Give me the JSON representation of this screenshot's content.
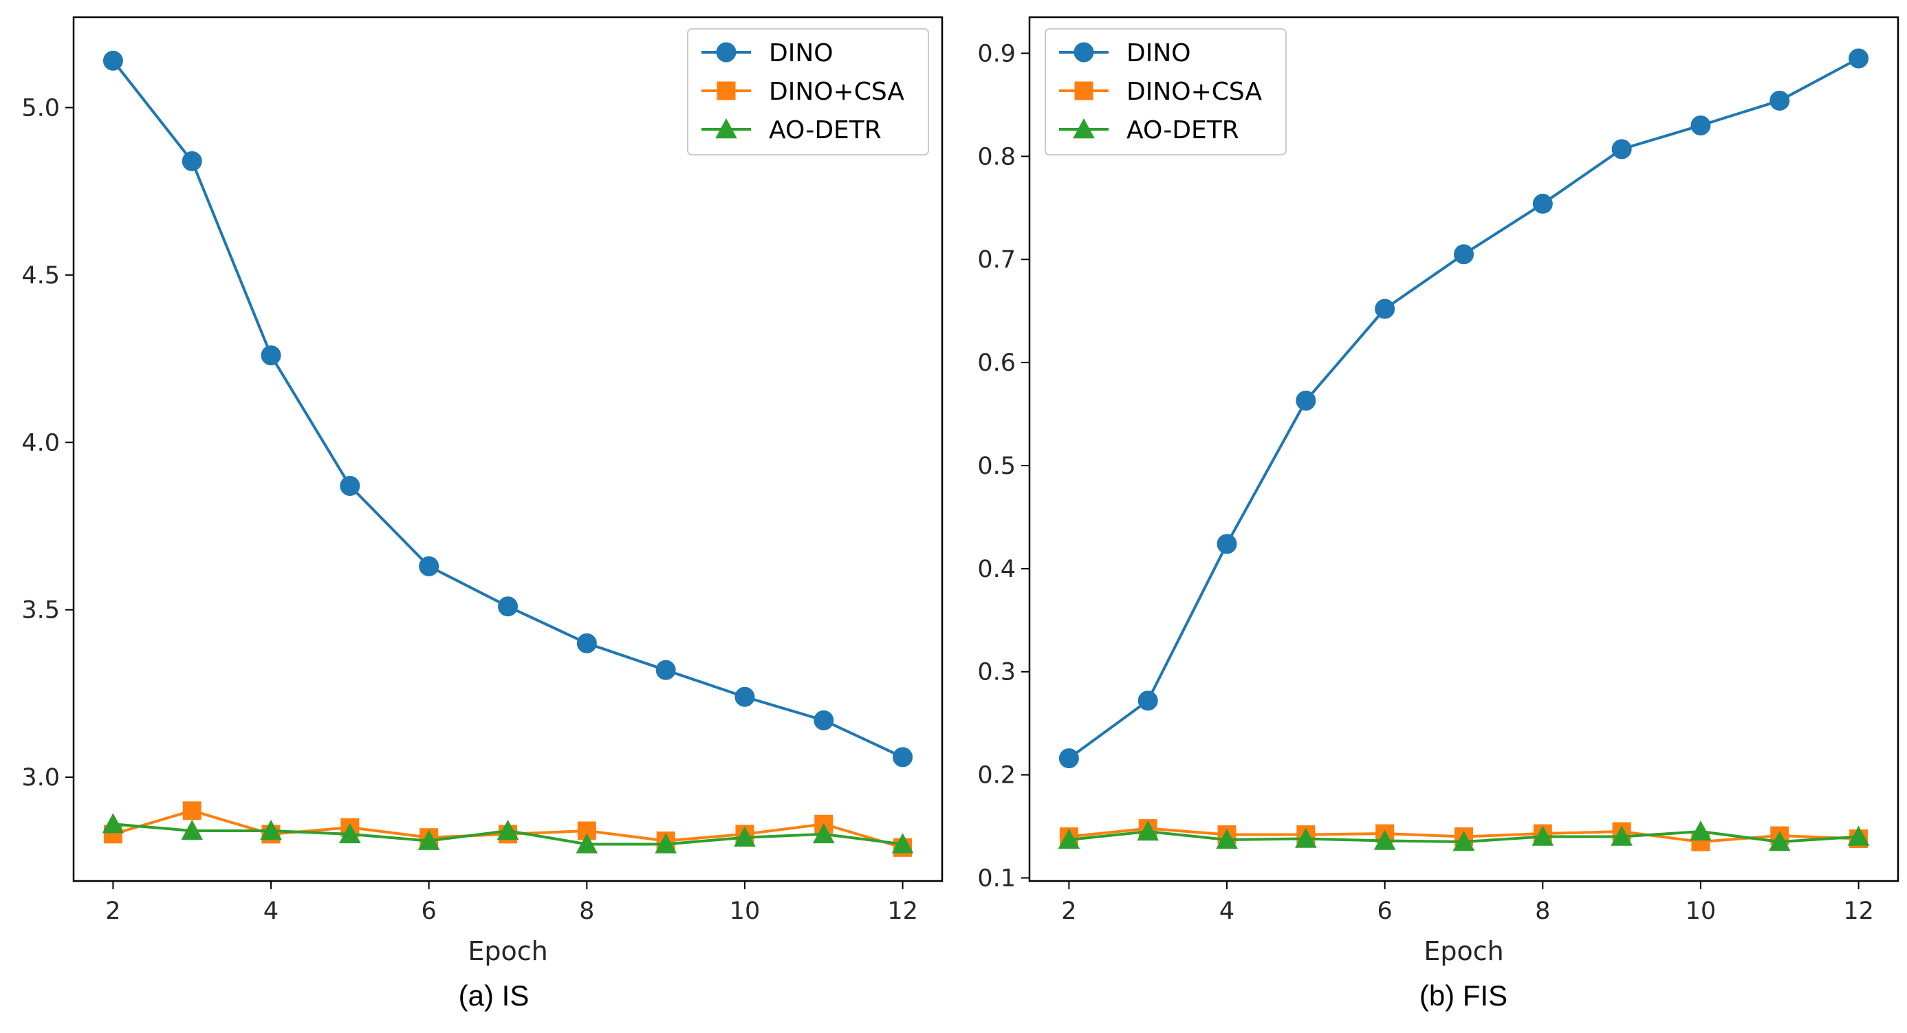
{
  "colors": {
    "DINO": "#1f77b4",
    "DINO+CSA": "#ff7f0e",
    "AO-DETR": "#2ca02c"
  },
  "markers": {
    "DINO": "circle",
    "DINO+CSA": "square",
    "AO-DETR": "triangle"
  },
  "chart_data": [
    {
      "type": "line",
      "caption": "(a) IS",
      "xlabel": "Epoch",
      "ylabel": "",
      "x": [
        2,
        3,
        4,
        5,
        6,
        7,
        8,
        9,
        10,
        11,
        12
      ],
      "xlim": [
        1.5,
        12.5
      ],
      "ylim": [
        2.69,
        5.27
      ],
      "xticks": [
        2,
        4,
        6,
        8,
        10,
        12
      ],
      "yticks": [
        3.0,
        3.5,
        4.0,
        4.5,
        5.0
      ],
      "ytick_labels": [
        "3.0",
        "3.5",
        "4.0",
        "4.5",
        "5.0"
      ],
      "legend_position": "top-right",
      "grid": false,
      "series": [
        {
          "name": "DINO",
          "values": [
            5.14,
            4.84,
            4.26,
            3.87,
            3.63,
            3.51,
            3.4,
            3.32,
            3.24,
            3.17,
            3.06
          ]
        },
        {
          "name": "DINO+CSA",
          "values": [
            2.83,
            2.9,
            2.83,
            2.85,
            2.82,
            2.83,
            2.84,
            2.81,
            2.83,
            2.86,
            2.79
          ]
        },
        {
          "name": "AO-DETR",
          "values": [
            2.86,
            2.84,
            2.84,
            2.83,
            2.81,
            2.84,
            2.8,
            2.8,
            2.82,
            2.83,
            2.8
          ]
        }
      ]
    },
    {
      "type": "line",
      "caption": "(b) FIS",
      "xlabel": "Epoch",
      "ylabel": "",
      "x": [
        2,
        3,
        4,
        5,
        6,
        7,
        8,
        9,
        10,
        11,
        12
      ],
      "xlim": [
        1.5,
        12.5
      ],
      "ylim": [
        0.097,
        0.935
      ],
      "xticks": [
        2,
        4,
        6,
        8,
        10,
        12
      ],
      "yticks": [
        0.1,
        0.2,
        0.3,
        0.4,
        0.5,
        0.6,
        0.7,
        0.8,
        0.9
      ],
      "ytick_labels": [
        "0.1",
        "0.2",
        "0.3",
        "0.4",
        "0.5",
        "0.6",
        "0.7",
        "0.8",
        "0.9"
      ],
      "legend_position": "top-left",
      "grid": false,
      "series": [
        {
          "name": "DINO",
          "values": [
            0.216,
            0.272,
            0.424,
            0.563,
            0.652,
            0.705,
            0.754,
            0.807,
            0.83,
            0.854,
            0.895
          ]
        },
        {
          "name": "DINO+CSA",
          "values": [
            0.14,
            0.148,
            0.142,
            0.142,
            0.143,
            0.14,
            0.143,
            0.145,
            0.135,
            0.141,
            0.138
          ]
        },
        {
          "name": "AO-DETR",
          "values": [
            0.137,
            0.145,
            0.137,
            0.138,
            0.136,
            0.135,
            0.14,
            0.14,
            0.145,
            0.135,
            0.14
          ]
        }
      ]
    }
  ]
}
